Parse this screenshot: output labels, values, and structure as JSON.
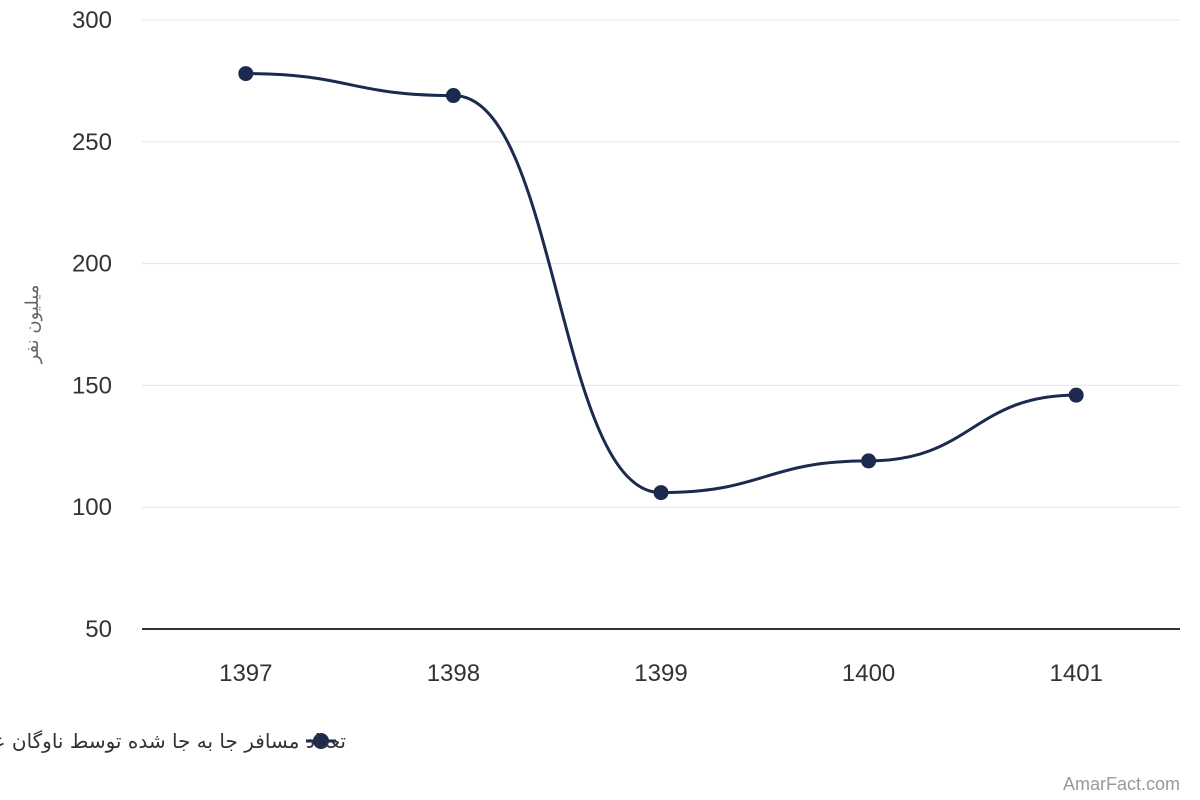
{
  "chart_data": {
    "type": "line",
    "categories": [
      "1397",
      "1398",
      "1399",
      "1400",
      "1401"
    ],
    "series": [
      {
        "name": "تعداد مسافر جا به جا شده توسط ناوگان عمومی حمل و نقل جاده‌ای",
        "values": [
          278,
          269,
          106,
          119,
          146
        ]
      }
    ],
    "ylabel": "میلیون نفر",
    "ylim": [
      50,
      300
    ],
    "yticks": [
      "50",
      "100",
      "150",
      "200",
      "250",
      "300"
    ],
    "grid": true,
    "smooth": true,
    "legend_position": "bottom-center",
    "colors": {
      "series": "#1b2a4e",
      "grid": "#e6e6e6",
      "axis": "#333333"
    },
    "credit": "AmarFact.com"
  }
}
